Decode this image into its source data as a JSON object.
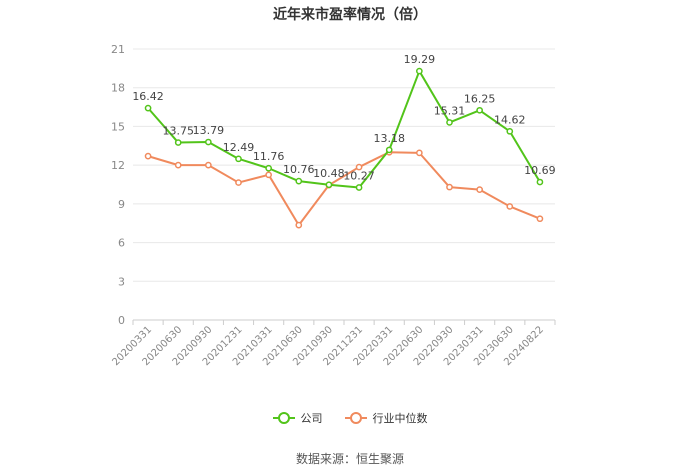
{
  "chart_data": {
    "type": "line",
    "title": "近年来市盈率情况（倍）",
    "categories": [
      "20200331",
      "20200630",
      "20200930",
      "20201231",
      "20210331",
      "20210630",
      "20210930",
      "20211231",
      "20220331",
      "20220630",
      "20220930",
      "20230331",
      "20230630",
      "20240822"
    ],
    "series": [
      {
        "name": "公司",
        "color": "#52c41a",
        "values": [
          16.42,
          13.75,
          13.79,
          12.49,
          11.76,
          10.76,
          10.48,
          10.27,
          13.18,
          19.29,
          15.31,
          16.25,
          14.62,
          10.69
        ],
        "labels": [
          "16.42",
          "13.75",
          "13.79",
          "12.49",
          "11.76",
          "10.76",
          "10.48",
          "10.27",
          "13.18",
          "19.29",
          "15.31",
          "16.25",
          "14.62",
          "10.69"
        ]
      },
      {
        "name": "行业中位数",
        "color": "#f08a5d",
        "values": [
          12.7,
          12.0,
          12.0,
          10.65,
          11.25,
          7.35,
          10.45,
          11.85,
          13.0,
          12.95,
          10.3,
          10.1,
          8.8,
          7.85
        ]
      }
    ],
    "yticks": [
      0,
      3,
      6,
      9,
      12,
      15,
      18,
      21
    ],
    "ylim": [
      0,
      21
    ],
    "grid": true,
    "legend": "bottom-center",
    "source": "数据来源：恒生聚源"
  }
}
